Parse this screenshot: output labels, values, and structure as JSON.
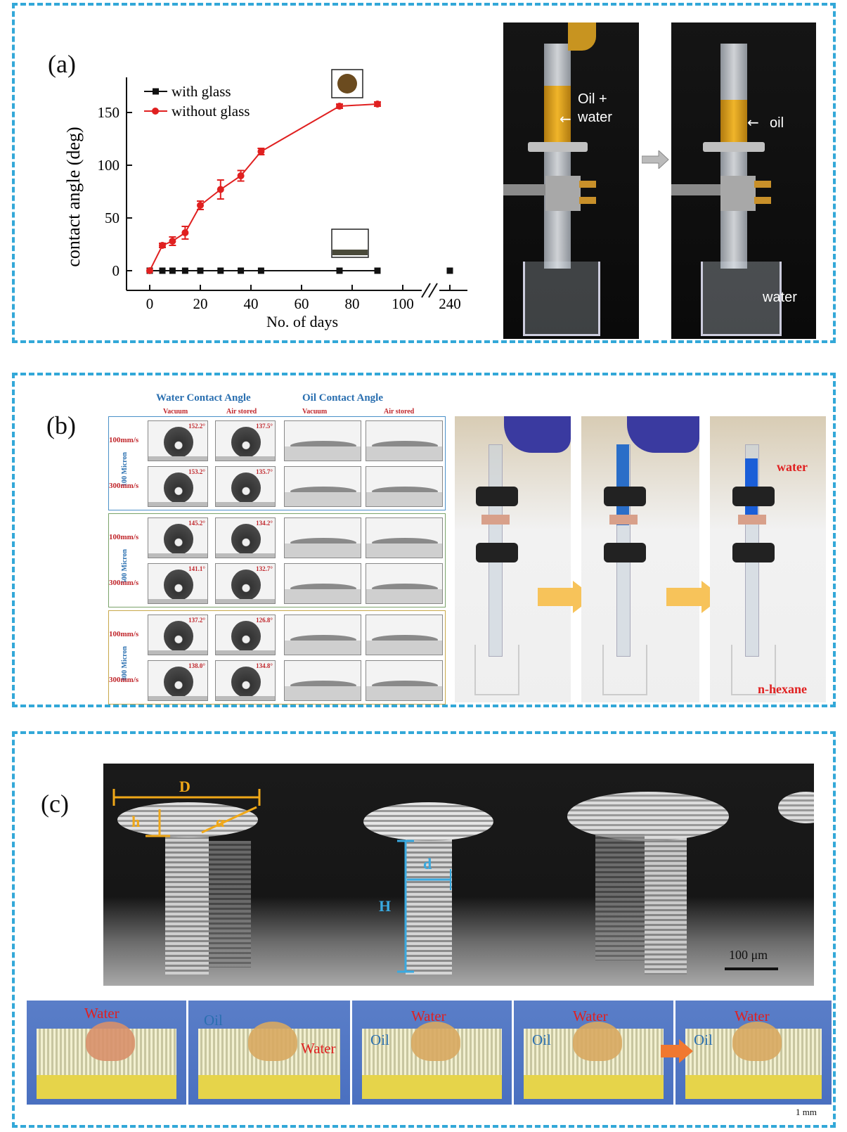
{
  "panels": {
    "a": {
      "label": "(a)"
    },
    "b": {
      "label": "(b)"
    },
    "c": {
      "label": "(c)"
    }
  },
  "chart_data": {
    "type": "line",
    "xlabel": "No. of days",
    "ylabel": "contact angle (deg)",
    "xticks": [
      "0",
      "20",
      "40",
      "60",
      "80",
      "100",
      "240"
    ],
    "yticks": [
      "0",
      "50",
      "100",
      "150"
    ],
    "ylim": [
      -20,
      180
    ],
    "axis_break": "between 100 and 240",
    "legend_position": "top-left",
    "series": [
      {
        "name": "with glass",
        "color": "#111111",
        "marker": "square",
        "x": [
          0,
          5,
          9,
          14,
          20,
          28,
          36,
          44,
          75,
          90,
          240
        ],
        "y": [
          0,
          0,
          0,
          0,
          0,
          0,
          0,
          0,
          0,
          0,
          0
        ]
      },
      {
        "name": "without glass",
        "color": "#e02020",
        "marker": "circle",
        "x": [
          0,
          5,
          9,
          14,
          20,
          28,
          36,
          44,
          75,
          90
        ],
        "y": [
          0,
          24,
          28,
          36,
          62,
          77,
          90,
          113,
          156,
          158
        ],
        "err": [
          0,
          2,
          4,
          6,
          4,
          9,
          5,
          3,
          2,
          2
        ]
      }
    ]
  },
  "photo_a": {
    "left_label_line1": "Oil +",
    "left_label_line2": "water",
    "right_label_oil": "oil",
    "right_label_water": "water"
  },
  "contact_table": {
    "water_title": "Water Contact Angle",
    "oil_title": "Oil Contact Angle",
    "sub_vacuum": "Vacuum",
    "sub_air": "Air stored",
    "groups": [
      {
        "micron": "100 Micron",
        "color": "#4a90c8",
        "rows": [
          {
            "speed": "100mm/s",
            "vac": "152.2°",
            "air": "137.5°"
          },
          {
            "speed": "300mm/s",
            "vac": "153.2°",
            "air": "135.7°"
          }
        ]
      },
      {
        "micron": "500 Micron",
        "color": "#7aa36a",
        "rows": [
          {
            "speed": "100mm/s",
            "vac": "145.2°",
            "air": "134.2°"
          },
          {
            "speed": "300mm/s",
            "vac": "141.1°",
            "air": "132.7°"
          }
        ]
      },
      {
        "micron": "800 Micron",
        "color": "#c8a84a",
        "rows": [
          {
            "speed": "100mm/s",
            "vac": "137.2°",
            "air": "126.8°"
          },
          {
            "speed": "300mm/s",
            "vac": "138.0°",
            "air": "134.8°"
          }
        ]
      }
    ]
  },
  "photo_b": {
    "water": "water",
    "hexane": "n-hexane"
  },
  "sem": {
    "D": "D",
    "h": "h",
    "alpha": "α",
    "d": "d",
    "H": "H",
    "scale": "100 μm"
  },
  "strip": {
    "water": "Water",
    "oil": "Oil",
    "scale": "1 mm"
  }
}
